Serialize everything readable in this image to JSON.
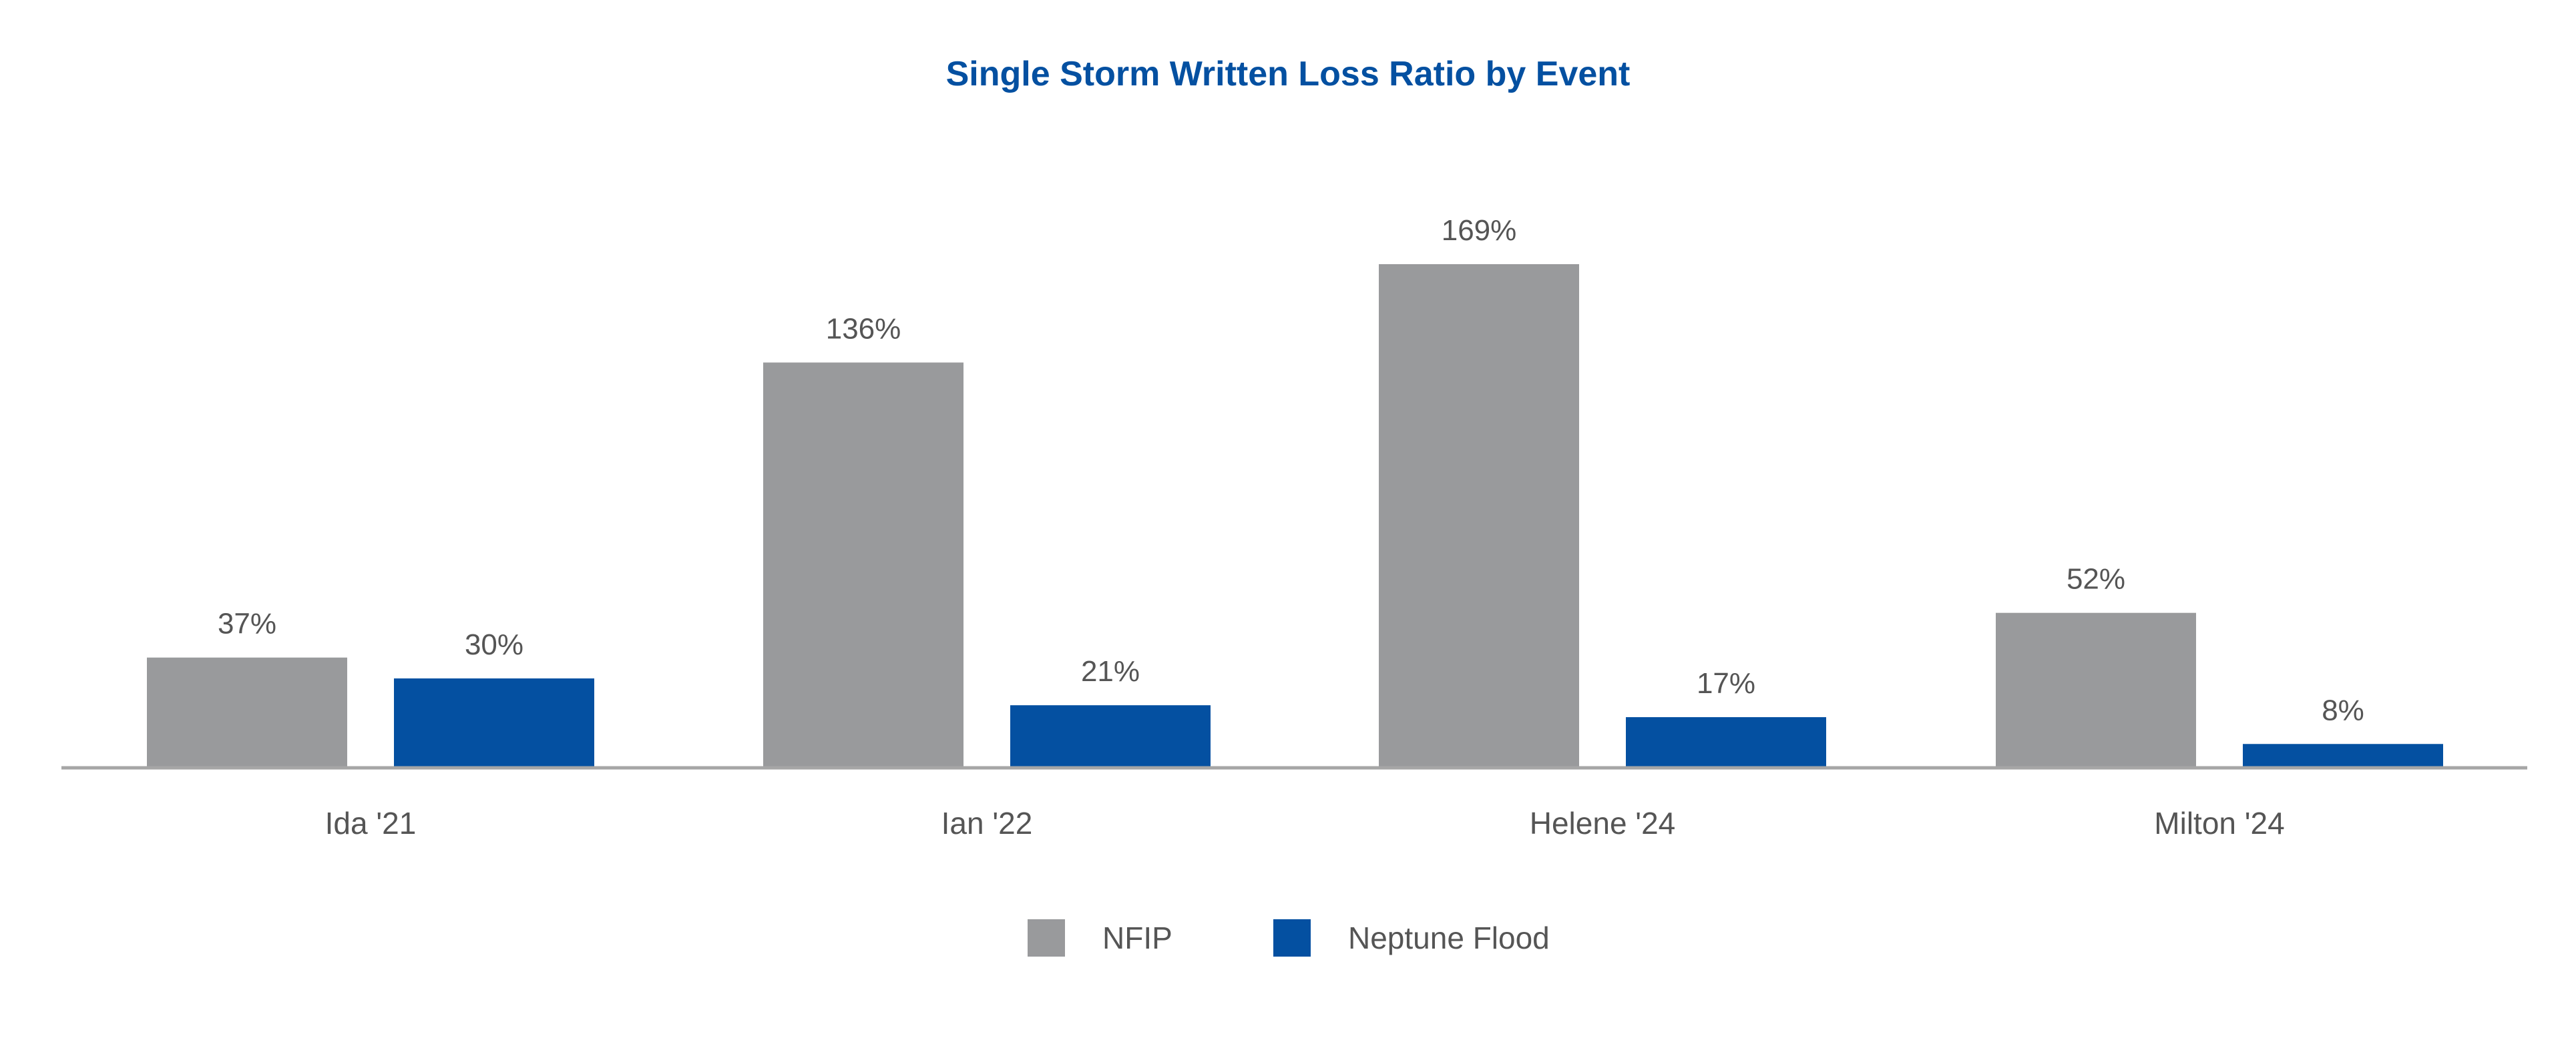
{
  "chart_data": {
    "type": "bar",
    "title": "Single Storm Written Loss Ratio by Event",
    "categories": [
      "Ida '21",
      "Ian '22",
      "Helene '24",
      "Milton '24"
    ],
    "series": [
      {
        "name": "NFIP",
        "values": [
          37,
          136,
          169,
          52
        ],
        "labels": [
          "37%",
          "136%",
          "169%",
          "52%"
        ],
        "color": "#999A9C"
      },
      {
        "name": "Neptune Flood",
        "values": [
          30,
          21,
          17,
          8
        ],
        "labels": [
          "30%",
          "21%",
          "17%",
          "8%"
        ],
        "color": "#0450A1"
      }
    ],
    "ylim": [
      0,
      170
    ],
    "grid": false,
    "legend_position": "bottom-center",
    "colors": {
      "title": "#0450A1",
      "text": "#555555",
      "axis": "#A6A6A6"
    }
  }
}
